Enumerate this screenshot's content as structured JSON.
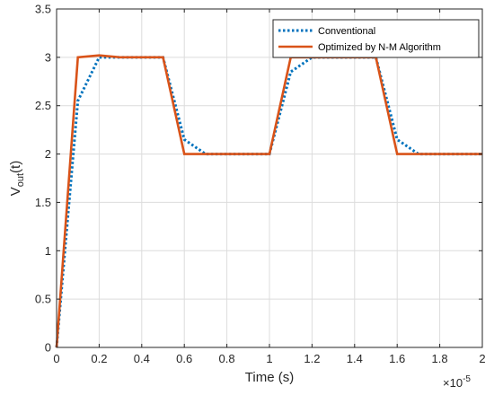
{
  "chart_data": {
    "type": "line",
    "xlabel": "Time (s)",
    "ylabel_main": "V",
    "ylabel_sub": "out",
    "ylabel_tail": "(t)",
    "x_multiplier_base": "×10",
    "x_multiplier_exp": "-5",
    "xlim": [
      0,
      2
    ],
    "ylim": [
      0,
      3.5
    ],
    "x_ticks": [
      "0",
      "0.2",
      "0.4",
      "0.6",
      "0.8",
      "1",
      "1.2",
      "1.4",
      "1.6",
      "1.8",
      "2"
    ],
    "y_ticks": [
      "0",
      "0.5",
      "1",
      "1.5",
      "2",
      "2.5",
      "3",
      "3.5"
    ],
    "legend_position": "top-right",
    "grid": true,
    "series": [
      {
        "name": "Conventional",
        "style": "dotted",
        "color": "#0072BD",
        "x": [
          0,
          0.1,
          0.2,
          0.3,
          0.4,
          0.5,
          0.6,
          0.7,
          0.8,
          0.9,
          1.0,
          1.1,
          1.2,
          1.3,
          1.4,
          1.5,
          1.6,
          1.7,
          1.8,
          1.9,
          2.0
        ],
        "y": [
          0,
          2.55,
          3.0,
          3.0,
          3.0,
          3.0,
          2.15,
          2.0,
          2.0,
          2.0,
          2.0,
          2.85,
          3.0,
          3.0,
          3.0,
          3.0,
          2.15,
          2.0,
          2.0,
          2.0,
          2.0
        ]
      },
      {
        "name": "Optimized by N-M Algorithm",
        "style": "solid",
        "color": "#D95319",
        "x": [
          0,
          0.1,
          0.2,
          0.3,
          0.4,
          0.5,
          0.6,
          0.7,
          0.8,
          0.9,
          1.0,
          1.1,
          1.2,
          1.3,
          1.4,
          1.5,
          1.6,
          1.7,
          1.8,
          1.9,
          2.0
        ],
        "y": [
          0,
          3.0,
          3.02,
          3.0,
          3.0,
          3.0,
          2.0,
          2.0,
          2.0,
          2.0,
          2.0,
          3.0,
          3.0,
          3.0,
          3.0,
          3.0,
          2.0,
          2.0,
          2.0,
          2.0,
          2.0
        ]
      }
    ]
  }
}
